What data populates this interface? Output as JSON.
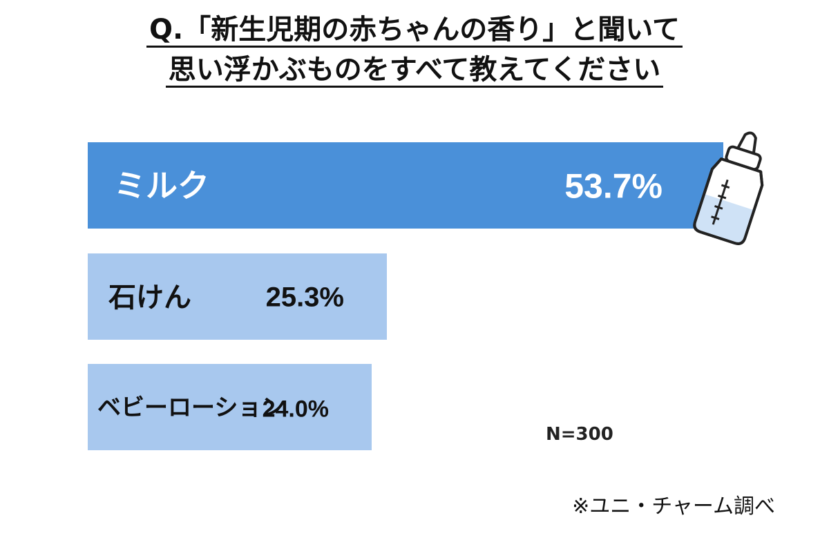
{
  "title": {
    "line1": "Q.「新生児期の赤ちゃんの香り」と聞いて",
    "line2": "思い浮かぶものをすべて教えてください"
  },
  "sample_size": "N=300",
  "source_note": "※ユニ・チャーム調べ",
  "colors": {
    "primary_bar": "#4a90d9",
    "secondary_bar": "#a8c8ee",
    "bottle_liquid": "#cfe2f6",
    "outline": "#222222"
  },
  "illustration": {
    "icon": "baby-bottle-icon"
  },
  "chart_data": {
    "type": "bar",
    "orientation": "horizontal",
    "categories": [
      "ミルク",
      "石けん",
      "ベビーローション"
    ],
    "values": [
      53.7,
      25.3,
      24.0
    ],
    "value_labels": [
      "53.7%",
      "25.3%",
      "24.0%"
    ],
    "unit": "%",
    "title": "Q.「新生児期の赤ちゃんの香り」と聞いて思い浮かぶものをすべて教えてください",
    "xlabel": "",
    "ylabel": "",
    "xlim": [
      0,
      53.7
    ],
    "grid": false,
    "legend": "none"
  }
}
